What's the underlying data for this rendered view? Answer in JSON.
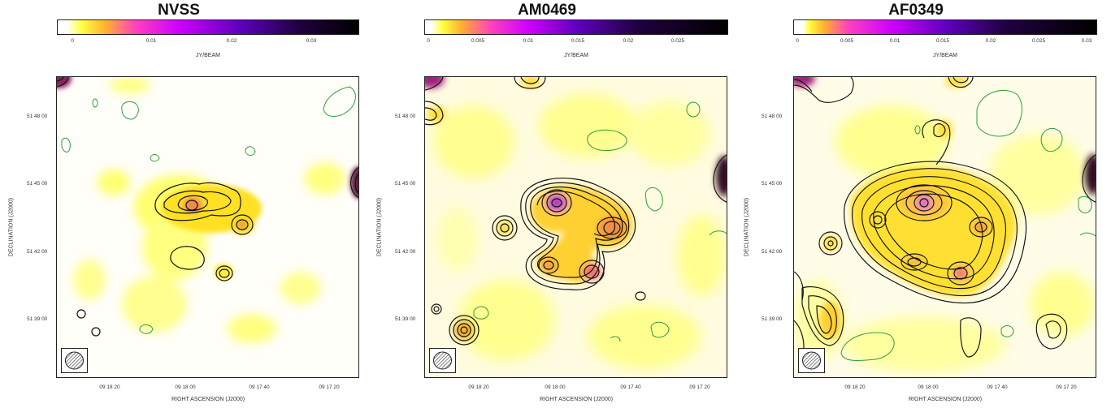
{
  "panels": [
    {
      "title": "NVSS",
      "colorbar": {
        "ticks": [
          "0",
          "0.01",
          "0.02",
          "0.03"
        ],
        "label": "JY/BEAM"
      },
      "dec_ticks": [
        "51 48 00",
        "51 45 00",
        "51 42 00",
        "51 39 00"
      ],
      "ra_ticks": [
        "09 18 20",
        "09 18 00",
        "09 17 40",
        "09 17 20"
      ],
      "xlabel": "RIGHT ASCENSION  (J2000)",
      "ylabel": "DECLINATION  (J2000)"
    },
    {
      "title": "AM0469",
      "colorbar": {
        "ticks": [
          "0",
          "0.005",
          "0.01",
          "0.015",
          "0.02",
          "0.025"
        ],
        "label": "JY/BEAM"
      },
      "dec_ticks": [
        "51 48 00",
        "51 45 00",
        "51 42 00",
        "51 39 00"
      ],
      "ra_ticks": [
        "09 18 20",
        "09 18 00",
        "09 17 40",
        "09 17 20"
      ],
      "xlabel": "RIGHT ASCENSION  (J2000)",
      "ylabel": "DECLINATION  (J2000)"
    },
    {
      "title": "AF0349",
      "colorbar": {
        "ticks": [
          "0",
          "0.005",
          "0.01",
          "0.015",
          "0.02",
          "0.025",
          "0.03"
        ],
        "label": "JY/BEAM"
      },
      "dec_ticks": [
        "51 48 00",
        "51 45 00",
        "51 42 00",
        "51 39 00"
      ],
      "ra_ticks": [
        "09 18 20",
        "09 18 00",
        "09 17 40",
        "09 17 20"
      ],
      "xlabel": "RIGHT ASCENSION  (J2000)",
      "ylabel": "DECLINATION  (J2000)"
    }
  ],
  "colors": {
    "colormap": [
      "#ffffff",
      "#ffff40",
      "#ffb030",
      "#ff40c0",
      "#c000ff",
      "#6000c0",
      "#200040",
      "#000000"
    ],
    "positive_contour": "#111111",
    "negative_contour": "#2e9e3e"
  }
}
